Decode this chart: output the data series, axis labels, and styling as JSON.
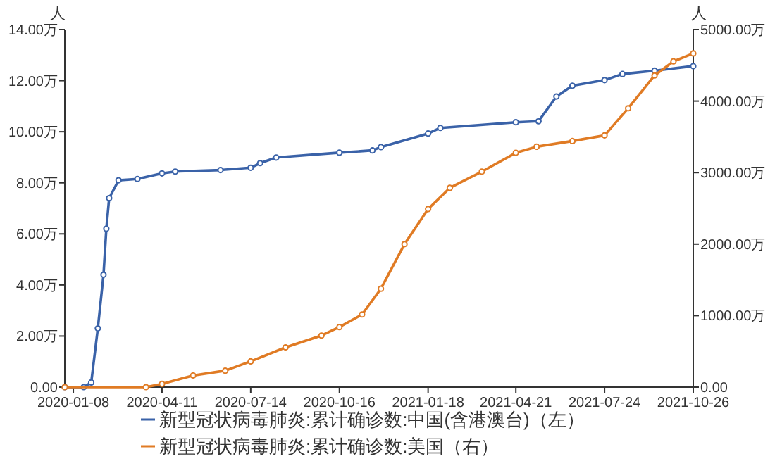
{
  "chart_data": {
    "type": "line",
    "ylabel": "人",
    "y2label": "人",
    "xlim": [
      "2019-12-30",
      "2021-10-26"
    ],
    "xticks": [
      "2020-01-08",
      "2020-04-11",
      "2020-07-14",
      "2020-10-16",
      "2021-01-18",
      "2021-04-21",
      "2021-07-24",
      "2021-10-26"
    ],
    "ylim": [
      0,
      14
    ],
    "yticks": [
      {
        "value": 0,
        "label": "0.00"
      },
      {
        "value": 2,
        "label": "2.00万"
      },
      {
        "value": 4,
        "label": "4.00万"
      },
      {
        "value": 6,
        "label": "6.00万"
      },
      {
        "value": 8,
        "label": "8.00万"
      },
      {
        "value": 10,
        "label": "10.00万"
      },
      {
        "value": 12,
        "label": "12.00万"
      },
      {
        "value": 14,
        "label": "14.00万"
      }
    ],
    "y2lim": [
      0,
      5000
    ],
    "y2ticks": [
      {
        "value": 0,
        "label": "0.00"
      },
      {
        "value": 1000,
        "label": "1000.00万"
      },
      {
        "value": 2000,
        "label": "2000.00万"
      },
      {
        "value": 3000,
        "label": "3000.00万"
      },
      {
        "value": 4000,
        "label": "4000.00万"
      },
      {
        "value": 5000,
        "label": "5000.00万"
      }
    ],
    "grid": false,
    "legend": "bottom",
    "marker": "circle",
    "line_style": "solid",
    "series": [
      {
        "name": "新型冠状病毒肺炎:累计确诊数:中国(含港澳台)（左）",
        "color": "#3a62a8",
        "axis": "y",
        "x": [
          "2019-12-30",
          "2020-01-19",
          "2020-01-27",
          "2020-02-03",
          "2020-02-09",
          "2020-02-12",
          "2020-02-15",
          "2020-02-25",
          "2020-03-16",
          "2020-04-11",
          "2020-04-25",
          "2020-06-12",
          "2020-07-14",
          "2020-07-24",
          "2020-08-10",
          "2020-10-16",
          "2020-11-20",
          "2020-11-29",
          "2021-01-18",
          "2021-01-31",
          "2021-04-21",
          "2021-05-15",
          "2021-06-03",
          "2021-06-20",
          "2021-07-24",
          "2021-08-12",
          "2021-09-15",
          "2021-10-26"
        ],
        "values": [
          0,
          0,
          0.18,
          2.3,
          4.4,
          6.2,
          7.4,
          8.1,
          8.15,
          8.37,
          8.44,
          8.5,
          8.59,
          8.77,
          8.99,
          9.18,
          9.27,
          9.4,
          9.93,
          10.15,
          10.37,
          10.41,
          11.38,
          11.8,
          12.02,
          12.26,
          12.39,
          12.57
        ]
      },
      {
        "name": "新型冠状病毒肺炎:累计确诊数:美国（右）",
        "color": "#e07b24",
        "axis": "y2",
        "x": [
          "2019-12-30",
          "2020-03-25",
          "2020-04-11",
          "2020-05-14",
          "2020-06-17",
          "2020-07-14",
          "2020-08-20",
          "2020-09-27",
          "2020-10-16",
          "2020-11-09",
          "2020-11-29",
          "2020-12-24",
          "2021-01-18",
          "2021-02-10",
          "2021-03-16",
          "2021-04-21",
          "2021-05-13",
          "2021-06-20",
          "2021-07-24",
          "2021-08-18",
          "2021-09-15",
          "2021-10-05",
          "2021-10-26"
        ],
        "values": [
          0,
          0,
          45,
          163,
          230,
          360,
          556,
          721,
          840,
          1016,
          1376,
          2000,
          2491,
          2786,
          3014,
          3277,
          3362,
          3441,
          3520,
          3899,
          4358,
          4555,
          4666
        ]
      }
    ]
  }
}
